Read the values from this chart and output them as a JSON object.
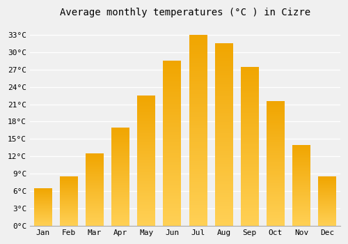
{
  "months": [
    "Jan",
    "Feb",
    "Mar",
    "Apr",
    "May",
    "Jun",
    "Jul",
    "Aug",
    "Sep",
    "Oct",
    "Nov",
    "Dec"
  ],
  "values": [
    6.5,
    8.5,
    12.5,
    17.0,
    22.5,
    28.5,
    33.0,
    31.5,
    27.5,
    21.5,
    14.0,
    8.5
  ],
  "bar_color_dark": "#F0A500",
  "bar_color_light": "#FFD055",
  "title": "Average monthly temperatures (°C ) in Cizre",
  "yticks": [
    0,
    3,
    6,
    9,
    12,
    15,
    18,
    21,
    24,
    27,
    30,
    33
  ],
  "ytick_labels": [
    "0°C",
    "3°C",
    "6°C",
    "9°C",
    "12°C",
    "15°C",
    "18°C",
    "21°C",
    "24°C",
    "27°C",
    "30°C",
    "33°C"
  ],
  "ylim": [
    0,
    35
  ],
  "background_color": "#f0f0f0",
  "grid_color": "#ffffff",
  "title_fontsize": 10,
  "tick_fontsize": 8,
  "font_family": "monospace",
  "bar_width": 0.7,
  "n_gradient_steps": 100
}
